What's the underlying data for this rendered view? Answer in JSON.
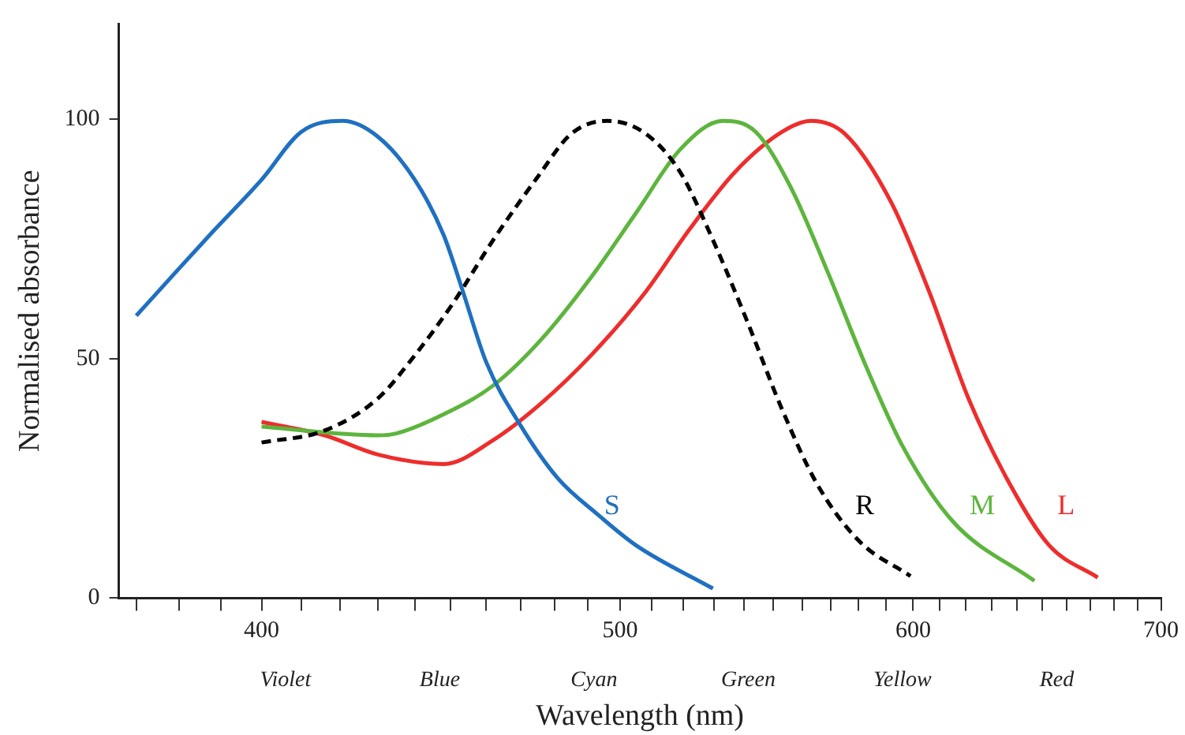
{
  "chart_data": {
    "type": "line",
    "xlabel": "Wavelength (nm)",
    "ylabel": "Normalised absorbance",
    "log": "x",
    "xlim": [
      366,
      700
    ],
    "xticks": [
      {
        "value": 370,
        "label": null
      },
      {
        "value": 380,
        "label": null
      },
      {
        "value": 390,
        "label": null
      },
      400,
      {
        "value": 410,
        "label": null
      },
      {
        "value": 420,
        "label": null
      },
      {
        "value": 430,
        "label": null
      },
      {
        "value": 440,
        "label": null
      },
      {
        "value": 450,
        "label": null
      },
      {
        "value": 460,
        "label": null
      },
      {
        "value": 470,
        "label": null
      },
      {
        "value": 480,
        "label": null
      },
      {
        "value": 490,
        "label": null
      },
      500,
      {
        "value": 510,
        "label": null
      },
      {
        "value": 520,
        "label": null
      },
      {
        "value": 530,
        "label": null
      },
      {
        "value": 540,
        "label": null
      },
      {
        "value": 550,
        "label": null
      },
      {
        "value": 560,
        "label": null
      },
      {
        "value": 570,
        "label": null
      },
      {
        "value": 580,
        "label": null
      },
      {
        "value": 590,
        "label": null
      },
      600,
      {
        "value": 610,
        "label": null
      },
      {
        "value": 620,
        "label": null
      },
      {
        "value": 630,
        "label": null
      },
      {
        "value": 640,
        "label": null
      },
      {
        "value": 650,
        "label": null
      },
      {
        "value": 660,
        "label": null
      },
      {
        "value": 670,
        "label": null
      },
      {
        "value": 680,
        "label": null
      },
      {
        "value": 690,
        "label": null
      },
      700
    ],
    "ylim": [
      0,
      120
    ],
    "yticks": [
      0,
      50,
      100
    ],
    "grid": false,
    "legend": false,
    "marker": "none",
    "annotations": [
      "Violet",
      "Blue",
      "Cyan",
      "Green",
      "Yellow",
      "Red"
    ],
    "series": [
      {
        "name": "S",
        "color": "#1f70c1",
        "line_style": "solid",
        "x": [
          370,
          378.6,
          388,
          400,
          410,
          420.7,
          430,
          440,
          448,
          453.4,
          460,
          470,
          481,
          493,
          505,
          529.7
        ],
        "values": [
          59,
          67.5,
          76.5,
          87.4,
          97.4,
          99.7,
          96.4,
          87.4,
          75.8,
          64,
          49.3,
          36,
          25,
          17.5,
          11,
          2
        ]
      },
      {
        "name": "R",
        "color": "#000000",
        "line_style": "dashed",
        "x": [
          400,
          416,
          430,
          440,
          450.6,
          462,
          475,
          485,
          496,
          508,
          519,
          529.7,
          541,
          553,
          565,
          580,
          599
        ],
        "values": [
          32.5,
          35,
          41.7,
          50.7,
          61.6,
          74.8,
          88,
          97,
          99.7,
          97,
          89,
          74.8,
          58,
          39.4,
          24,
          12,
          4.6
        ]
      },
      {
        "name": "M",
        "color": "#5db53d",
        "line_style": "solid",
        "x": [
          400,
          430,
          435,
          448,
          462,
          476,
          491,
          505,
          519,
          533,
          544,
          556,
          569,
          582,
          596,
          615,
          647
        ],
        "values": [
          35.8,
          34,
          34.4,
          38.4,
          44.4,
          54,
          67,
          80.5,
          93.7,
          99.7,
          97.4,
          85.8,
          68,
          49.3,
          31.8,
          16,
          3.6
        ]
      },
      {
        "name": "L",
        "color": "#ee2d2d",
        "line_style": "solid",
        "x": [
          400,
          416,
          430,
          448,
          462,
          476,
          491,
          508,
          522,
          537,
          553,
          563,
          575,
          592,
          606,
          621,
          637,
          653,
          673
        ],
        "values": [
          36.8,
          34,
          30,
          28,
          33,
          40.7,
          50.7,
          64,
          77,
          89,
          97.4,
          99.7,
          97,
          82.5,
          64,
          41.7,
          24,
          11,
          4.3
        ]
      }
    ]
  }
}
